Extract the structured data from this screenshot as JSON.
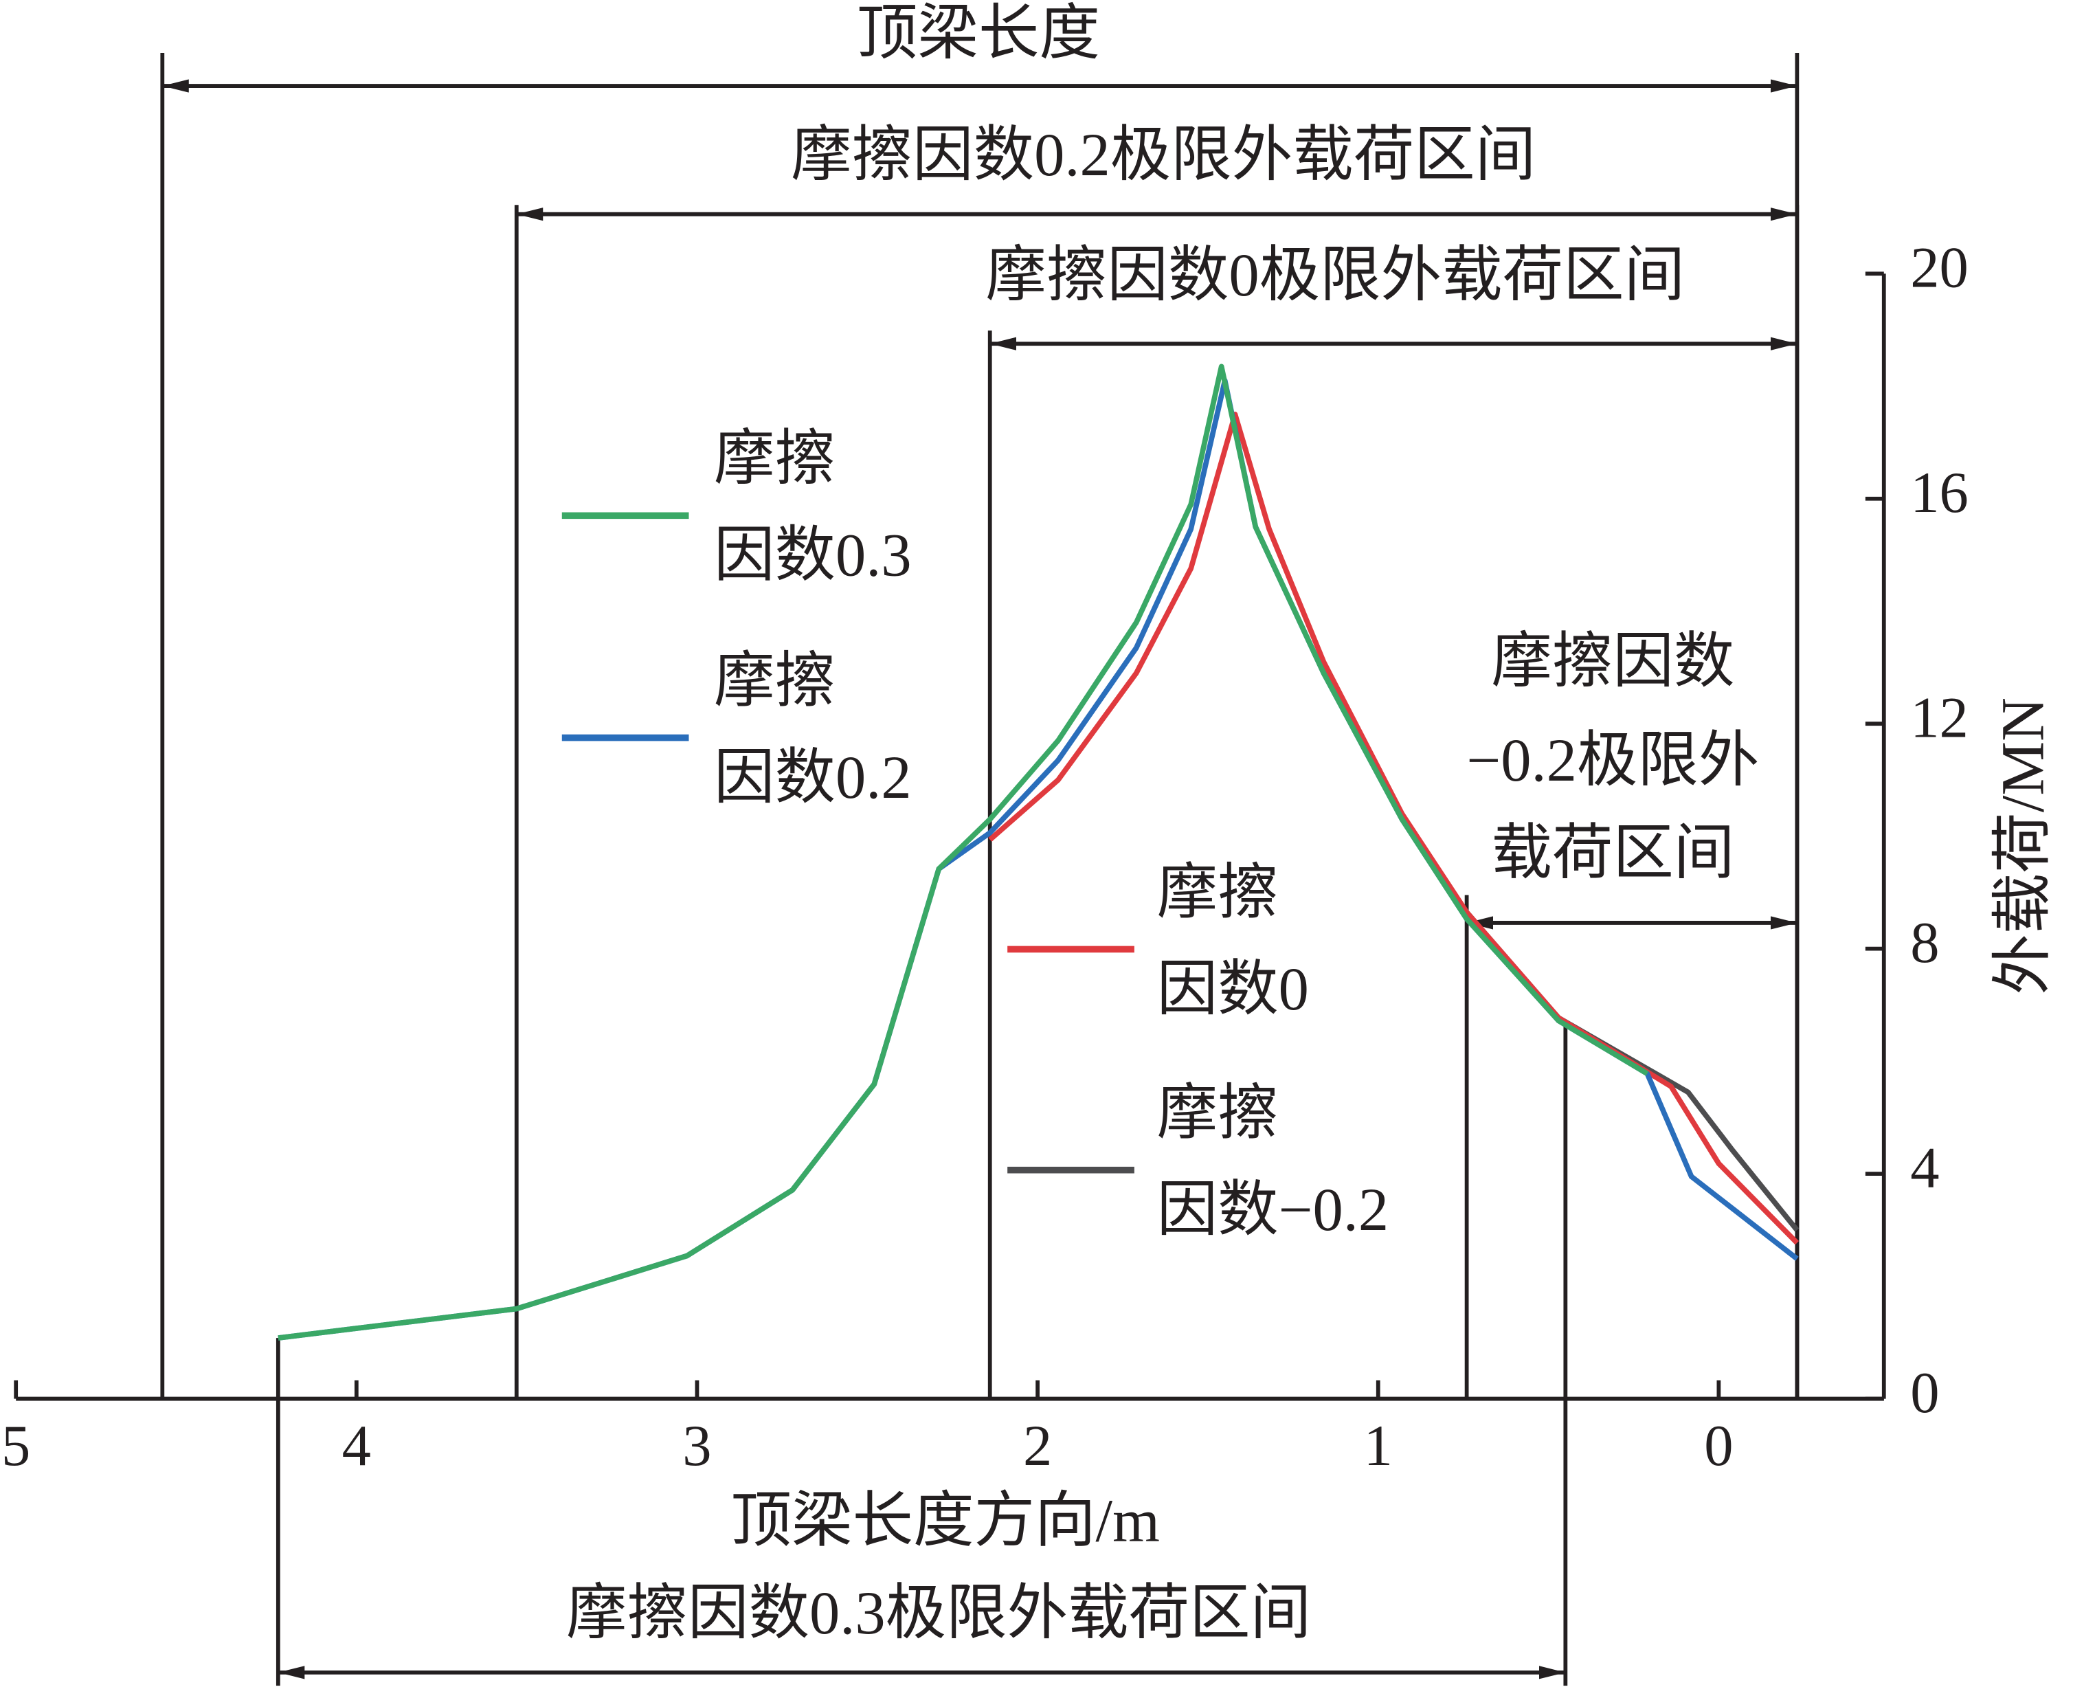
{
  "chart_data": {
    "type": "line",
    "x_label": "顶梁长度方向/m",
    "y_label": "外载荷/MN",
    "xlim": [
      5,
      -0.485
    ],
    "ylim": [
      0,
      20
    ],
    "xticks": [
      5,
      4,
      3,
      2,
      1,
      0
    ],
    "yticks": [
      0,
      4,
      8,
      12,
      16,
      20
    ],
    "series": [
      {
        "name": "摩擦因数−0.2",
        "color": "#4d4d4f",
        "x": [
          0.74,
          0.47,
          0.09,
          -0.04,
          -0.23
        ],
        "values": [
          8.65,
          6.77,
          5.45,
          4.42,
          3.0
        ]
      },
      {
        "name": "摩擦因数0",
        "color": "#e03a3e",
        "x": [
          2.14,
          1.94,
          1.71,
          1.55,
          1.42,
          1.32,
          1.16,
          0.93,
          0.74,
          0.47,
          0.14,
          0,
          -0.23
        ],
        "values": [
          9.94,
          11.0,
          12.9,
          14.76,
          17.5,
          15.46,
          13.1,
          10.4,
          8.65,
          6.77,
          5.55,
          4.18,
          2.77
        ]
      },
      {
        "name": "摩擦因数0.2",
        "color": "#2a6ebb",
        "x": [
          4.23,
          3.53,
          3.03,
          2.72,
          2.48,
          2.29,
          2.14,
          1.94,
          1.71,
          1.55,
          1.45,
          1.36,
          1.16,
          0.93,
          0.74,
          0.47,
          0.21,
          0.08,
          -0.23
        ],
        "values": [
          1.08,
          1.6,
          2.54,
          3.71,
          5.59,
          9.42,
          10.06,
          11.35,
          13.35,
          15.46,
          18.1,
          15.5,
          12.9,
          10.3,
          8.53,
          6.72,
          5.78,
          3.95,
          2.49
        ]
      },
      {
        "name": "摩擦因数0.3",
        "color": "#3aa866",
        "x": [
          4.23,
          3.53,
          3.03,
          2.72,
          2.48,
          2.29,
          2.14,
          1.94,
          1.71,
          1.55,
          1.46,
          1.36,
          1.16,
          0.93,
          0.74,
          0.47,
          0.21
        ],
        "values": [
          1.08,
          1.6,
          2.54,
          3.71,
          5.59,
          9.42,
          10.3,
          11.7,
          13.8,
          15.9,
          18.35,
          15.5,
          12.9,
          10.3,
          8.53,
          6.72,
          5.78
        ]
      }
    ],
    "annotations": [
      {
        "text": "顶梁长度",
        "x": [
          4.57,
          -0.23
        ]
      },
      {
        "text": "摩擦因数0.2极限外载荷区间",
        "x": [
          3.53,
          -0.23
        ]
      },
      {
        "text": "摩擦因数0极限外载荷区间",
        "x": [
          2.14,
          -0.23
        ]
      },
      {
        "text": [
          "摩擦因数",
          "−0.2极限外",
          "载荷区间"
        ],
        "x": [
          0.74,
          -0.23
        ]
      },
      {
        "text": "摩擦因数0.3极限外载荷区间",
        "x": [
          4.23,
          0.45
        ]
      }
    ]
  }
}
